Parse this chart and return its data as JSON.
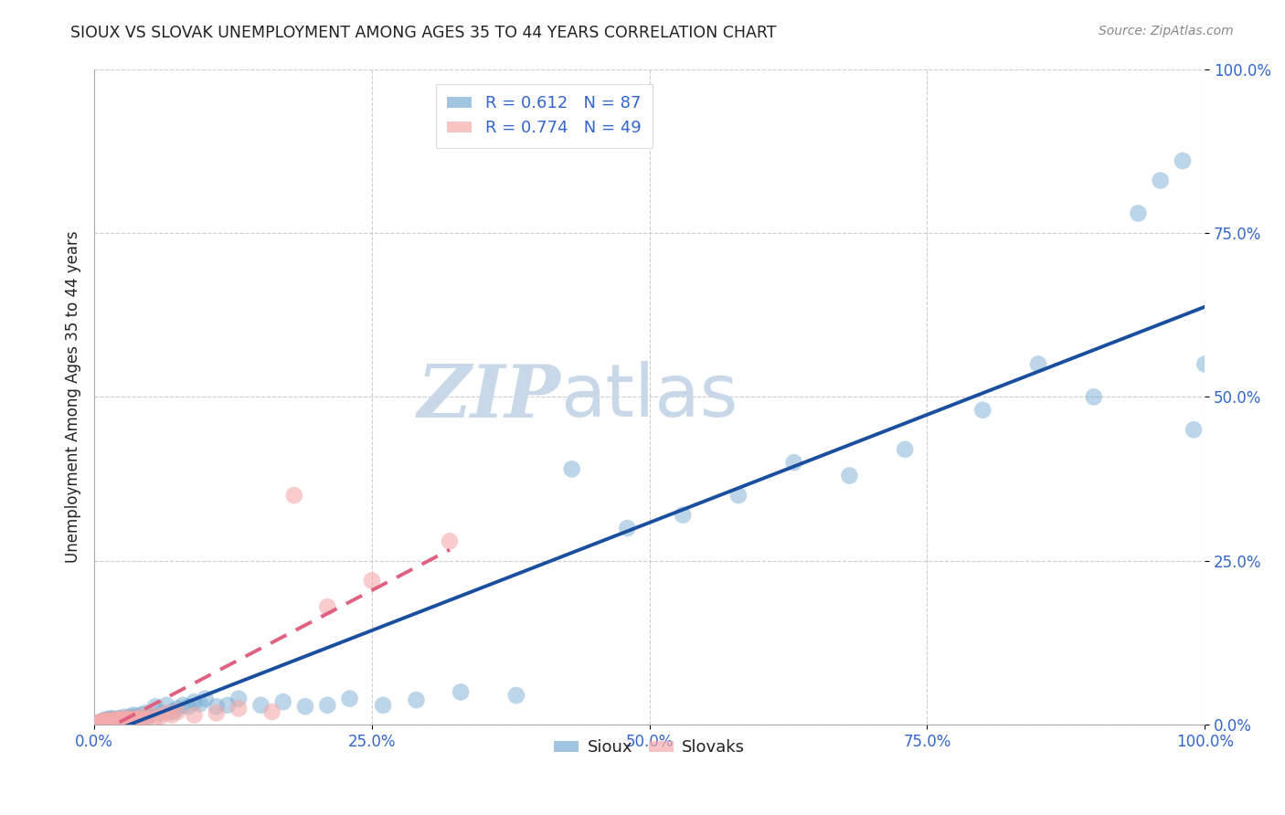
{
  "title": "SIOUX VS SLOVAK UNEMPLOYMENT AMONG AGES 35 TO 44 YEARS CORRELATION CHART",
  "source": "Source: ZipAtlas.com",
  "ylabel": "Unemployment Among Ages 35 to 44 years",
  "sioux_label": "Sioux",
  "slovak_label": "Slovaks",
  "sioux_R": 0.612,
  "sioux_N": 87,
  "slovak_R": 0.774,
  "slovak_N": 49,
  "sioux_color": "#7AADD4",
  "slovak_color": "#F4AAAA",
  "sioux_line_color": "#1A4FA0",
  "slovak_line_color": "#E06080",
  "background_color": "#FFFFFF",
  "grid_color": "#C8C8C8",
  "title_color": "#222222",
  "legend_R_color": "#3366CC",
  "tick_label_color": "#3366CC",
  "watermark_zip_color": "#C8D8E8",
  "watermark_atlas_color": "#C8D8E8",
  "xlim": [
    0,
    1
  ],
  "ylim": [
    0,
    1
  ],
  "ticks": [
    0,
    0.25,
    0.5,
    0.75,
    1.0
  ],
  "tick_labels": [
    "0.0%",
    "25.0%",
    "50.0%",
    "75.0%",
    "100.0%"
  ],
  "sioux_x": [
    0.002,
    0.003,
    0.004,
    0.005,
    0.005,
    0.006,
    0.006,
    0.007,
    0.007,
    0.008,
    0.008,
    0.009,
    0.009,
    0.01,
    0.01,
    0.011,
    0.011,
    0.012,
    0.012,
    0.013,
    0.013,
    0.014,
    0.015,
    0.015,
    0.016,
    0.016,
    0.017,
    0.018,
    0.019,
    0.02,
    0.021,
    0.022,
    0.023,
    0.025,
    0.026,
    0.027,
    0.028,
    0.03,
    0.031,
    0.032,
    0.034,
    0.035,
    0.036,
    0.038,
    0.04,
    0.042,
    0.044,
    0.046,
    0.048,
    0.05,
    0.055,
    0.06,
    0.065,
    0.07,
    0.075,
    0.08,
    0.085,
    0.09,
    0.095,
    0.1,
    0.11,
    0.12,
    0.13,
    0.15,
    0.17,
    0.19,
    0.21,
    0.23,
    0.26,
    0.29,
    0.33,
    0.38,
    0.43,
    0.48,
    0.53,
    0.58,
    0.63,
    0.68,
    0.73,
    0.8,
    0.85,
    0.9,
    0.94,
    0.96,
    0.98,
    0.99,
    1.0
  ],
  "sioux_y": [
    0.001,
    0.002,
    0.002,
    0.003,
    0.004,
    0.002,
    0.004,
    0.003,
    0.005,
    0.003,
    0.006,
    0.004,
    0.007,
    0.003,
    0.006,
    0.004,
    0.008,
    0.005,
    0.007,
    0.004,
    0.009,
    0.005,
    0.003,
    0.007,
    0.005,
    0.01,
    0.006,
    0.008,
    0.005,
    0.007,
    0.009,
    0.006,
    0.01,
    0.008,
    0.005,
    0.012,
    0.008,
    0.01,
    0.007,
    0.012,
    0.009,
    0.015,
    0.01,
    0.013,
    0.008,
    0.015,
    0.01,
    0.018,
    0.012,
    0.015,
    0.028,
    0.018,
    0.03,
    0.02,
    0.025,
    0.03,
    0.028,
    0.035,
    0.032,
    0.04,
    0.028,
    0.03,
    0.04,
    0.03,
    0.035,
    0.028,
    0.03,
    0.04,
    0.03,
    0.038,
    0.05,
    0.045,
    0.39,
    0.3,
    0.32,
    0.35,
    0.4,
    0.38,
    0.42,
    0.48,
    0.55,
    0.5,
    0.78,
    0.83,
    0.86,
    0.45,
    0.55
  ],
  "slovak_x": [
    0.002,
    0.003,
    0.004,
    0.005,
    0.005,
    0.006,
    0.007,
    0.007,
    0.008,
    0.009,
    0.009,
    0.01,
    0.011,
    0.012,
    0.013,
    0.014,
    0.015,
    0.016,
    0.017,
    0.018,
    0.019,
    0.02,
    0.021,
    0.022,
    0.023,
    0.025,
    0.027,
    0.029,
    0.031,
    0.033,
    0.035,
    0.038,
    0.04,
    0.043,
    0.046,
    0.05,
    0.055,
    0.06,
    0.065,
    0.07,
    0.075,
    0.09,
    0.11,
    0.13,
    0.16,
    0.18,
    0.21,
    0.25,
    0.32
  ],
  "slovak_y": [
    0.001,
    0.002,
    0.002,
    0.003,
    0.004,
    0.002,
    0.003,
    0.005,
    0.003,
    0.004,
    0.006,
    0.003,
    0.005,
    0.007,
    0.004,
    0.006,
    0.003,
    0.005,
    0.007,
    0.004,
    0.006,
    0.008,
    0.005,
    0.007,
    0.009,
    0.006,
    0.008,
    0.01,
    0.007,
    0.009,
    0.008,
    0.01,
    0.006,
    0.012,
    0.009,
    0.015,
    0.01,
    0.013,
    0.018,
    0.015,
    0.02,
    0.015,
    0.018,
    0.025,
    0.02,
    0.35,
    0.18,
    0.22,
    0.28
  ]
}
